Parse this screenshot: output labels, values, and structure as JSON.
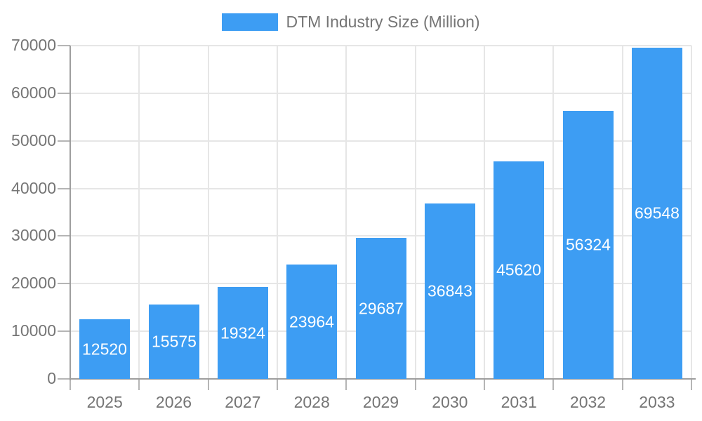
{
  "chart_data": {
    "type": "bar",
    "title": "DTM Industry Size (Million)",
    "categories": [
      "2025",
      "2026",
      "2027",
      "2028",
      "2029",
      "2030",
      "2031",
      "2032",
      "2033"
    ],
    "values": [
      12520,
      15575,
      19324,
      23964,
      29687,
      36843,
      45620,
      56324,
      69548
    ],
    "series": [
      {
        "name": "DTM Industry Size (Million)",
        "values": [
          12520,
          15575,
          19324,
          23964,
          29687,
          36843,
          45620,
          56324,
          69548
        ]
      }
    ],
    "xlabel": "",
    "ylabel": "",
    "ylim": [
      0,
      70000
    ],
    "yticks": [
      0,
      10000,
      20000,
      30000,
      40000,
      50000,
      60000,
      70000
    ],
    "grid": true,
    "legend_position": "top-center",
    "bar_value_labels": "inside-white-centered"
  },
  "legend": {
    "label": "DTM Industry Size (Million)"
  },
  "colors": {
    "bar": "#3d9df3",
    "bar_label": "#ffffff",
    "axis_text": "#757575",
    "gridline": "#e6e6e6",
    "axis_line": "#9e9e9e",
    "tick": "#b5b5b5",
    "background": "#ffffff"
  }
}
